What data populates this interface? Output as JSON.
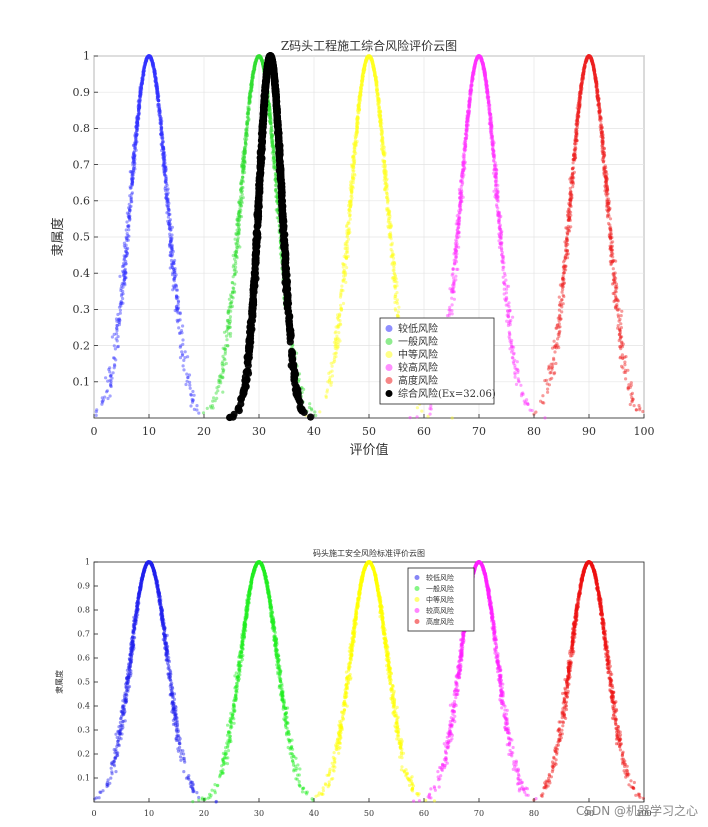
{
  "chart_data": [
    {
      "type": "scatter",
      "title": "Z码头工程施工综合风险评价云图",
      "xlabel": "评价值",
      "ylabel": "隶属度",
      "xlim": [
        0,
        100
      ],
      "ylim": [
        0,
        1
      ],
      "xticks": [
        "0",
        "10",
        "20",
        "30",
        "40",
        "50",
        "60",
        "70",
        "80",
        "90",
        "100"
      ],
      "yticks": [
        "0.1",
        "0.2",
        "0.3",
        "0.4",
        "0.5",
        "0.6",
        "0.7",
        "0.8",
        "0.9",
        "1"
      ],
      "grid": true,
      "legend_position": "bottom-right",
      "series": [
        {
          "name": "较低风险",
          "color": "#3333ff",
          "Ex": 10,
          "En": 3.33,
          "He": 0.15,
          "size": 1.6
        },
        {
          "name": "一般风险",
          "color": "#33dd33",
          "Ex": 30,
          "En": 3.33,
          "He": 0.15,
          "size": 1.6
        },
        {
          "name": "中等风险",
          "color": "#ffff22",
          "Ex": 50,
          "En": 3.33,
          "He": 0.15,
          "size": 1.6
        },
        {
          "name": "较高风险",
          "color": "#ff33ff",
          "Ex": 70,
          "En": 3.33,
          "He": 0.15,
          "size": 1.6
        },
        {
          "name": "高度风险",
          "color": "#ee2222",
          "Ex": 90,
          "En": 3.33,
          "He": 0.15,
          "size": 1.6
        },
        {
          "name": "综合风险(Ex=32.06)",
          "color": "#000000",
          "Ex": 32.06,
          "En": 2.1,
          "He": 0.1,
          "size": 3.6
        }
      ]
    },
    {
      "type": "scatter",
      "title": "码头施工安全风险标准评价云图",
      "xlabel": "评价值",
      "ylabel": "隶属度",
      "xlim": [
        0,
        100
      ],
      "ylim": [
        0,
        1
      ],
      "xticks": [
        "0",
        "10",
        "20",
        "30",
        "40",
        "50",
        "60",
        "70",
        "80",
        "90",
        "100"
      ],
      "yticks": [
        "0.1",
        "0.2",
        "0.3",
        "0.4",
        "0.5",
        "0.6",
        "0.7",
        "0.8",
        "0.9",
        "1"
      ],
      "grid": false,
      "legend_position": "top-right",
      "series": [
        {
          "name": "较低风险",
          "color": "#2222ee",
          "Ex": 10,
          "En": 3.33,
          "He": 0.15,
          "size": 1.6
        },
        {
          "name": "一般风险",
          "color": "#22ee22",
          "Ex": 30,
          "En": 3.33,
          "He": 0.15,
          "size": 1.6
        },
        {
          "name": "中等风险",
          "color": "#ffff00",
          "Ex": 50,
          "En": 3.33,
          "He": 0.15,
          "size": 1.6
        },
        {
          "name": "较高风险",
          "color": "#ff22ff",
          "Ex": 70,
          "En": 3.33,
          "He": 0.15,
          "size": 1.6
        },
        {
          "name": "高度风险",
          "color": "#ee1111",
          "Ex": 90,
          "En": 3.33,
          "He": 0.15,
          "size": 1.6
        }
      ]
    }
  ],
  "watermark": "CSDN @机器学习之心"
}
